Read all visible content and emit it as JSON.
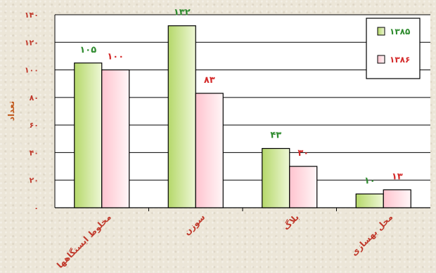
{
  "chart_data": {
    "type": "bar",
    "title": "",
    "xlabel": "",
    "ylabel": "تعداد",
    "ylim": [
      0,
      140
    ],
    "ytick_values": [
      0,
      20,
      40,
      60,
      80,
      100,
      120,
      140
    ],
    "ytick_labels": [
      "۰",
      "۲۰",
      "۴۰",
      "۶۰",
      "۸۰",
      "۱۰۰",
      "۱۲۰",
      "۱۴۰"
    ],
    "categories": [
      "مخلوط ایستگاهها",
      "سوزن",
      "بلاگ",
      "محل بهسازی"
    ],
    "series": [
      {
        "name": "۱۳۸۵",
        "values": [
          105,
          132,
          43,
          10
        ],
        "labels": [
          "۱۰۵",
          "۱۳۲",
          "۴۳",
          "۱۰"
        ]
      },
      {
        "name": "۱۳۸۶",
        "values": [
          100,
          83,
          30,
          13
        ],
        "labels": [
          "۱۰۰",
          "۸۳",
          "۳۰",
          "۱۳"
        ]
      }
    ],
    "grid": true,
    "legend_placement": "top-right",
    "colors": {
      "series_fill": [
        "#b5d86a",
        "#ffc4cf"
      ],
      "series_light": [
        "#eef7d6",
        "#fff6f7"
      ],
      "series_label": [
        "#2e8b2e",
        "#d42a2a"
      ],
      "axis_text": "#c0392b",
      "ylabel_text": "#c25a1e",
      "tick_text": "#c0392b",
      "bar_stroke": "#000000"
    }
  }
}
